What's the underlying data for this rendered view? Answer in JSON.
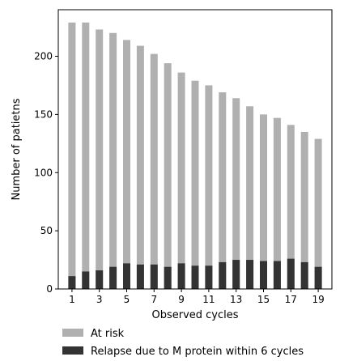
{
  "chart_data": {
    "type": "bar",
    "stacked": true,
    "xlabel": "Observed cycles",
    "ylabel": "Number of patietns",
    "ylim": [
      0,
      240
    ],
    "yticks": [
      0,
      50,
      100,
      150,
      200
    ],
    "x": [
      1,
      2,
      3,
      4,
      5,
      6,
      7,
      8,
      9,
      10,
      11,
      12,
      13,
      14,
      15,
      16,
      17,
      18,
      19
    ],
    "xtick_labels": [
      "1",
      "3",
      "5",
      "7",
      "9",
      "11",
      "13",
      "15",
      "17",
      "19"
    ],
    "series": [
      {
        "name": "At risk",
        "color": "#b0b0b0",
        "values": [
          229,
          229,
          223,
          220,
          214,
          209,
          202,
          194,
          186,
          179,
          175,
          169,
          164,
          157,
          150,
          147,
          141,
          135,
          129
        ]
      },
      {
        "name": "Relapse due to M protein within 6 cycles",
        "color": "#333333",
        "values": [
          11,
          15,
          16,
          19,
          22,
          21,
          21,
          19,
          22,
          20,
          20,
          23,
          25,
          25,
          24,
          24,
          26,
          23,
          19
        ]
      }
    ],
    "legend": "bottom"
  }
}
